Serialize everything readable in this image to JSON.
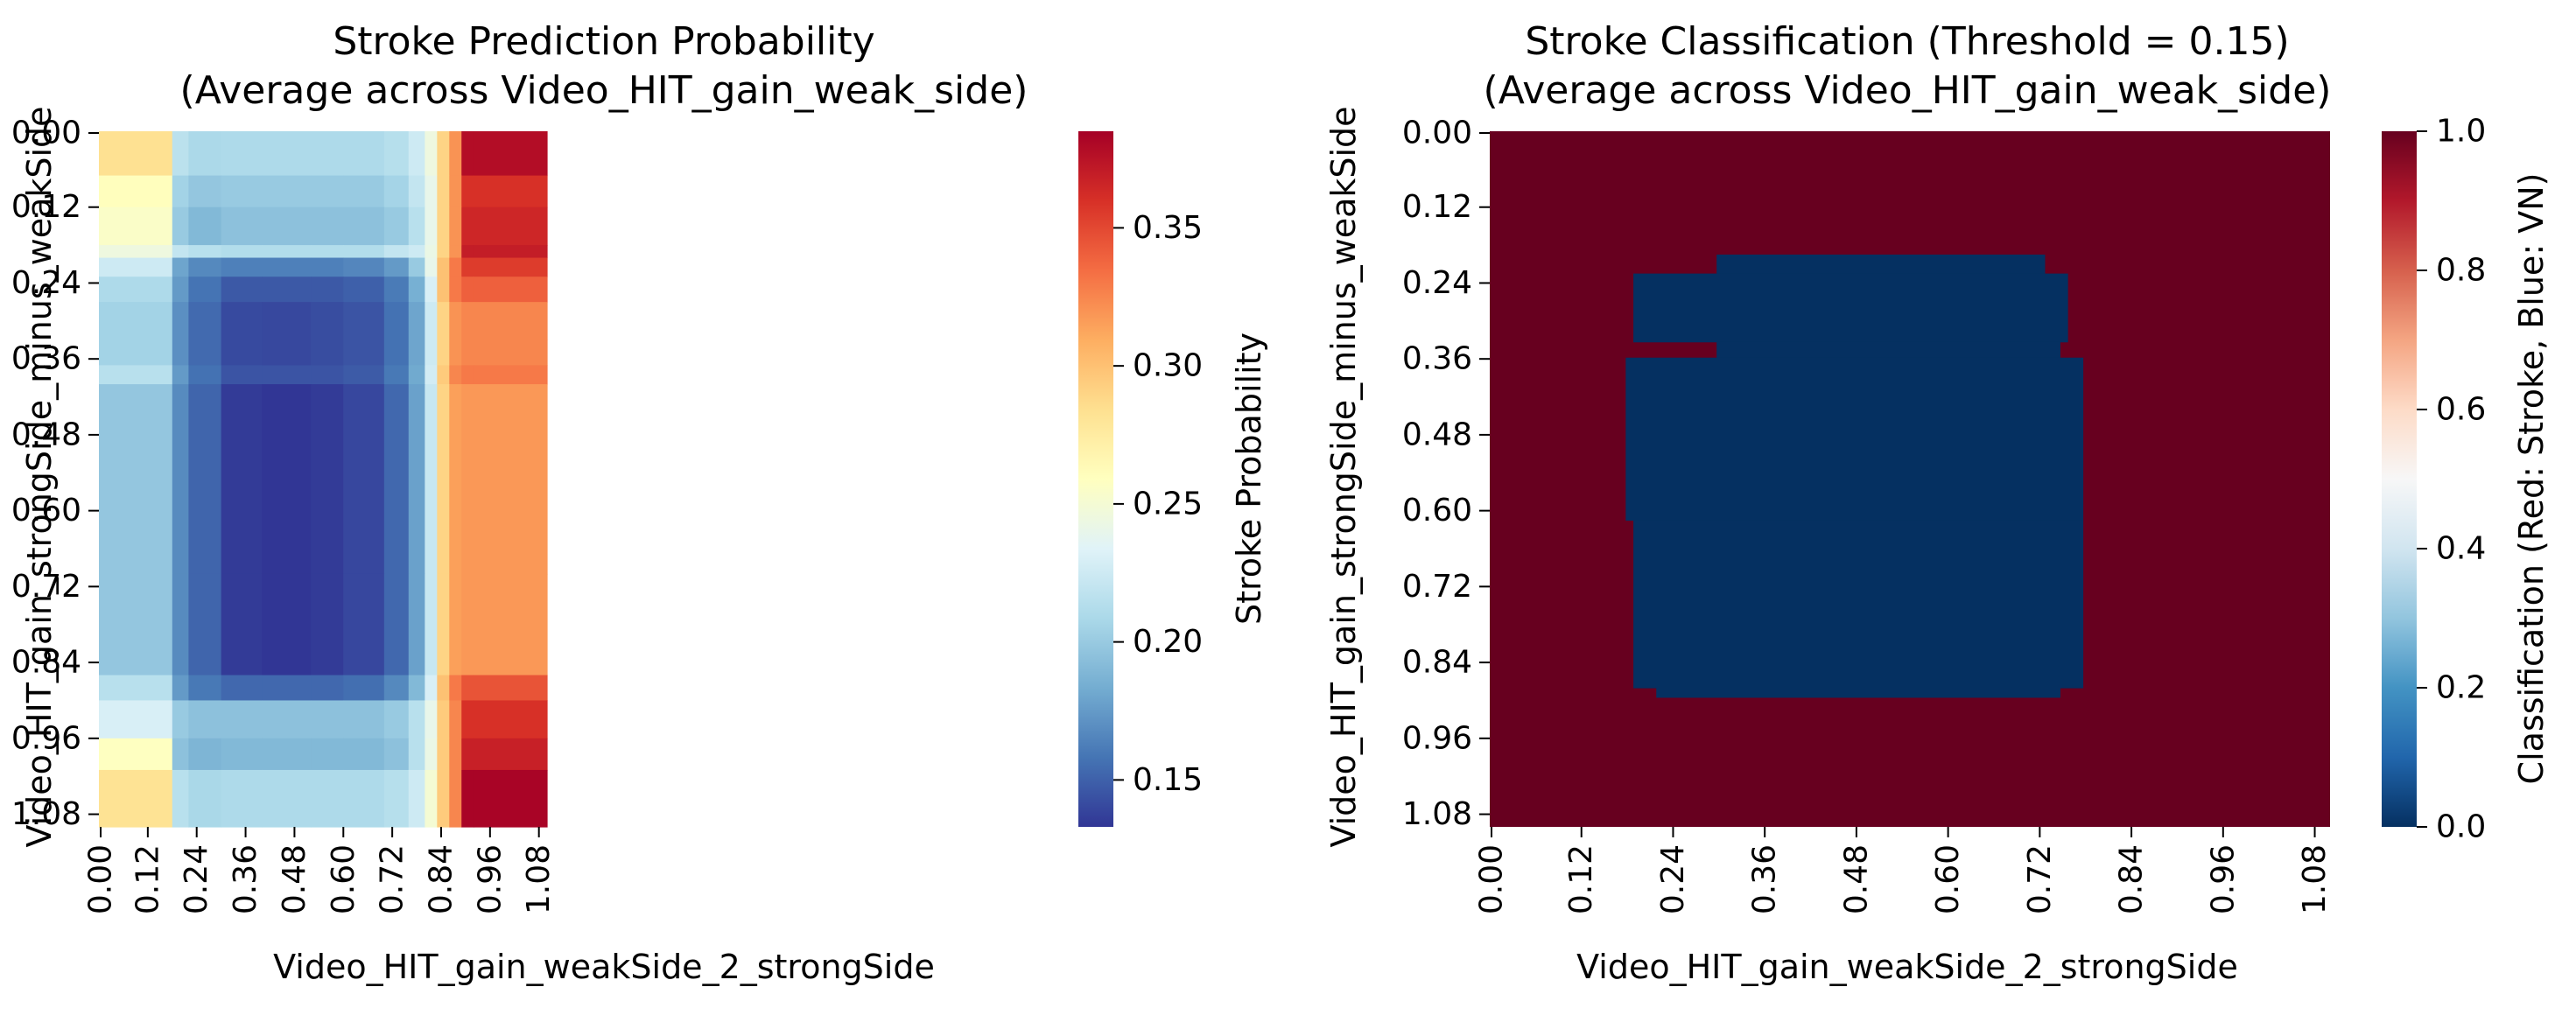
{
  "chart_data": [
    {
      "type": "heatmap",
      "title": "Stroke Prediction Probability",
      "subtitle": "(Average across Video_HIT_gain_weak_side)",
      "xlabel": "Video_HIT_gain_weakSide_2_strongSide",
      "ylabel": "Video_HIT_gain_strongSide_minus_weakSide",
      "x_ticks": [
        "0.00",
        "0.12",
        "0.24",
        "0.36",
        "0.48",
        "0.60",
        "0.72",
        "0.84",
        "0.96",
        "1.08"
      ],
      "y_ticks": [
        "0.00",
        "0.12",
        "0.24",
        "0.36",
        "0.48",
        "0.60",
        "0.72",
        "0.84",
        "0.96",
        "1.08"
      ],
      "x_range": [
        0.0,
        1.1
      ],
      "y_range": [
        0.0,
        1.1
      ],
      "colormap": "RdYlBu_r",
      "colorbar": {
        "label": "Stroke Probability",
        "range": [
          0.133,
          0.385
        ],
        "ticks": [
          "0.15",
          "0.20",
          "0.25",
          "0.30",
          "0.35"
        ],
        "tick_values": [
          0.15,
          0.2,
          0.25,
          0.3,
          0.35
        ]
      },
      "value_grid": {
        "x_bounds": [
          0.0,
          0.18,
          0.22,
          0.3,
          0.4,
          0.52,
          0.6,
          0.7,
          0.76,
          0.8,
          0.83,
          0.86,
          0.89,
          0.92,
          1.1
        ],
        "y_bounds": [
          0.0,
          0.07,
          0.12,
          0.18,
          0.2,
          0.23,
          0.27,
          0.33,
          0.37,
          0.4,
          0.7,
          0.86,
          0.9,
          0.96,
          1.01,
          1.1
        ],
        "column_offsets": [
          0.0,
          0.0,
          -0.008,
          -0.015,
          -0.015,
          -0.015,
          -0.012,
          -0.005,
          0.0,
          0.0,
          0.0,
          0.0,
          0.0,
          0.0
        ],
        "rows": [
          [
            0.283,
            0.216,
            0.209,
            0.21,
            0.21,
            0.21,
            0.21,
            0.214,
            0.225,
            0.245,
            0.29,
            0.32,
            0.378,
            0.378
          ],
          [
            0.26,
            0.205,
            0.198,
            0.2,
            0.2,
            0.2,
            0.2,
            0.206,
            0.22,
            0.24,
            0.29,
            0.32,
            0.36,
            0.36
          ],
          [
            0.255,
            0.2,
            0.19,
            0.195,
            0.195,
            0.195,
            0.195,
            0.2,
            0.215,
            0.24,
            0.29,
            0.32,
            0.365,
            0.365
          ],
          [
            0.245,
            0.22,
            0.215,
            0.212,
            0.212,
            0.212,
            0.212,
            0.22,
            0.225,
            0.242,
            0.29,
            0.32,
            0.37,
            0.37
          ],
          [
            0.225,
            0.18,
            0.175,
            0.178,
            0.178,
            0.178,
            0.178,
            0.18,
            0.2,
            0.24,
            0.3,
            0.33,
            0.355,
            0.355
          ],
          [
            0.21,
            0.175,
            0.166,
            0.162,
            0.162,
            0.162,
            0.162,
            0.166,
            0.185,
            0.23,
            0.3,
            0.33,
            0.34,
            0.34
          ],
          [
            0.205,
            0.17,
            0.162,
            0.156,
            0.155,
            0.157,
            0.157,
            0.162,
            0.18,
            0.225,
            0.29,
            0.32,
            0.325,
            0.325
          ],
          [
            0.205,
            0.17,
            0.162,
            0.156,
            0.155,
            0.157,
            0.157,
            0.162,
            0.18,
            0.225,
            0.29,
            0.32,
            0.325,
            0.325
          ],
          [
            0.215,
            0.175,
            0.165,
            0.16,
            0.16,
            0.16,
            0.16,
            0.165,
            0.182,
            0.227,
            0.295,
            0.325,
            0.33,
            0.33
          ],
          [
            0.198,
            0.168,
            0.16,
            0.15,
            0.148,
            0.15,
            0.152,
            0.158,
            0.178,
            0.222,
            0.29,
            0.315,
            0.318,
            0.318
          ],
          [
            0.198,
            0.168,
            0.16,
            0.15,
            0.148,
            0.15,
            0.152,
            0.158,
            0.178,
            0.222,
            0.29,
            0.315,
            0.318,
            0.318
          ],
          [
            0.215,
            0.175,
            0.168,
            0.168,
            0.168,
            0.168,
            0.168,
            0.172,
            0.19,
            0.23,
            0.3,
            0.33,
            0.345,
            0.345
          ],
          [
            0.23,
            0.2,
            0.195,
            0.195,
            0.195,
            0.195,
            0.195,
            0.2,
            0.215,
            0.24,
            0.295,
            0.325,
            0.36,
            0.36
          ],
          [
            0.258,
            0.195,
            0.188,
            0.19,
            0.19,
            0.19,
            0.19,
            0.195,
            0.215,
            0.242,
            0.295,
            0.325,
            0.368,
            0.368
          ],
          [
            0.282,
            0.215,
            0.208,
            0.21,
            0.21,
            0.21,
            0.21,
            0.214,
            0.225,
            0.25,
            0.295,
            0.325,
            0.383,
            0.383
          ]
        ]
      }
    },
    {
      "type": "heatmap",
      "title": "Stroke Classification (Threshold = 0.15)",
      "subtitle": "(Average across Video_HIT_gain_weak_side)",
      "xlabel": "Video_HIT_gain_weakSide_2_strongSide",
      "ylabel": "Video_HIT_gain_strongSide_minus_weakSide",
      "x_ticks": [
        "0.00",
        "0.12",
        "0.24",
        "0.36",
        "0.48",
        "0.60",
        "0.72",
        "0.84",
        "0.96",
        "1.08"
      ],
      "y_ticks": [
        "0.00",
        "0.12",
        "0.24",
        "0.36",
        "0.48",
        "0.60",
        "0.72",
        "0.84",
        "0.96",
        "1.08"
      ],
      "x_range": [
        0.0,
        1.1
      ],
      "y_range": [
        0.0,
        1.1
      ],
      "colormap": "RdBu_r",
      "background_value": 1,
      "colorbar": {
        "label": "Classification (Red: Stroke, Blue: VN)",
        "range": [
          0.0,
          1.0
        ],
        "ticks": [
          "0.0",
          "0.2",
          "0.4",
          "0.6",
          "0.8",
          "1.0"
        ],
        "tick_values": [
          0.0,
          0.2,
          0.4,
          0.6,
          0.8,
          1.0
        ]
      },
      "classified_regions": [
        {
          "value": 0,
          "x": [
            0.297,
            0.727
          ],
          "y": [
            0.195,
            0.225
          ]
        },
        {
          "value": 0,
          "x": [
            0.188,
            0.757
          ],
          "y": [
            0.225,
            0.333
          ]
        },
        {
          "value": 0,
          "x": [
            0.297,
            0.747
          ],
          "y": [
            0.333,
            0.358
          ]
        },
        {
          "value": 0,
          "x": [
            0.178,
            0.777
          ],
          "y": [
            0.358,
            0.615
          ]
        },
        {
          "value": 0,
          "x": [
            0.188,
            0.777
          ],
          "y": [
            0.615,
            0.88
          ]
        },
        {
          "value": 0,
          "x": [
            0.218,
            0.747
          ],
          "y": [
            0.88,
            0.895
          ]
        }
      ]
    }
  ]
}
